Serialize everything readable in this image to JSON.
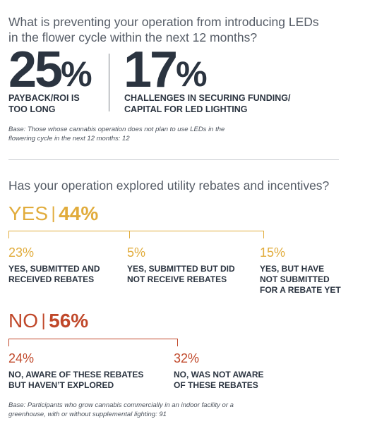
{
  "colors": {
    "yes_accent": "#e1ac3c",
    "no_accent": "#c0482a",
    "dark": "#2b3440",
    "gray_text": "#555c66"
  },
  "section1": {
    "question_line1": "What is preventing your operation from introducing LEDs",
    "question_line2": "in the flower cycle within the next 12 months?",
    "stats": [
      {
        "number": "25",
        "percent": "%",
        "label_line1": "PAYBACK/ROI IS",
        "label_line2": "TOO LONG"
      },
      {
        "number": "17",
        "percent": "%",
        "label_line1": "CHALLENGES IN SECURING FUNDING/",
        "label_line2": "CAPITAL FOR LED LIGHTING"
      }
    ],
    "base_line1": "Base: Those whose cannabis operation does not plan to use LEDs in the",
    "base_line2": "flowering cycle in the next 12 months: 12"
  },
  "section2": {
    "question": "Has your operation explored utility rebates and incentives?",
    "yes": {
      "word": "YES",
      "separator": "|",
      "percent": "44%",
      "items": [
        {
          "pct": "23%",
          "line1": "YES, SUBMITTED AND",
          "line2": "RECEIVED REBATES",
          "line3": ""
        },
        {
          "pct": "5%",
          "line1": "YES, SUBMITTED BUT DID",
          "line2": "NOT RECEIVE REBATES",
          "line3": ""
        },
        {
          "pct": "15%",
          "line1": "YES, BUT HAVE",
          "line2": "NOT SUBMITTED",
          "line3": "FOR A REBATE YET"
        }
      ]
    },
    "no": {
      "word": "NO",
      "separator": "|",
      "percent": "56%",
      "items": [
        {
          "pct": "24%",
          "line1": "NO, AWARE OF THESE REBATES",
          "line2": "BUT HAVEN’T EXPLORED"
        },
        {
          "pct": "32%",
          "line1": "NO, WAS NOT AWARE",
          "line2": "OF THESE REBATES"
        }
      ]
    },
    "base_line1": "Base: Participants who grow cannabis commercially in an indoor facility or a",
    "base_line2": "greenhouse, with or without supplemental lighting: 91"
  }
}
